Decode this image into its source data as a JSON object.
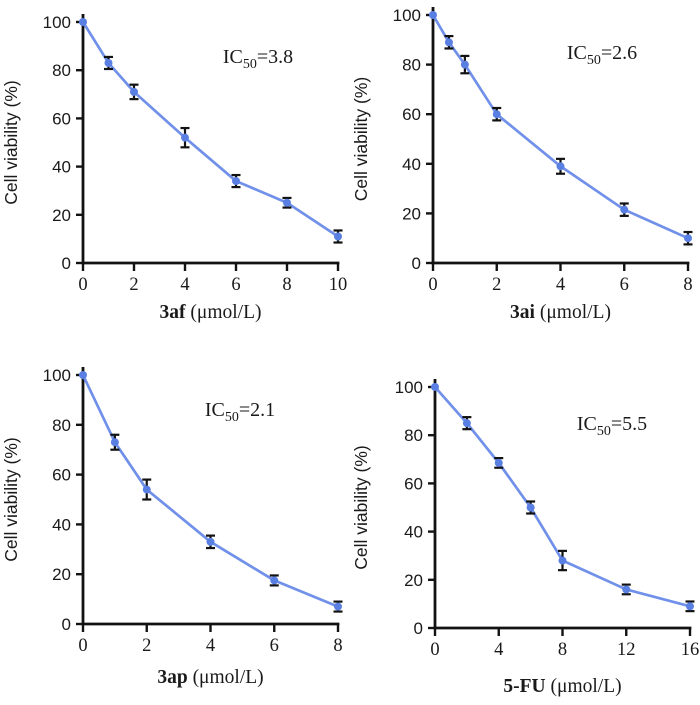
{
  "figure": {
    "background": "#ffffff",
    "axis_color": "#121212",
    "error_bar_color": "#121212",
    "line_color": "#7090e9",
    "marker_color": "#5a7fe3",
    "text_color": "#1a1a1a",
    "ylabel": "Cell viability (%)",
    "ylim": [
      0,
      100
    ],
    "yticks": [
      0,
      20,
      40,
      60,
      80,
      100
    ],
    "grid": "off",
    "legend": "none"
  },
  "chart_data": [
    {
      "type": "line",
      "id": "3af",
      "title": "",
      "xlabel_compound": "3af",
      "xlabel_unit": "(μmol/L)",
      "ylabel": "Cell viability (%)",
      "annotation": {
        "prefix": "IC",
        "subscript": "50",
        "value": "=3.8"
      },
      "x": [
        0,
        1,
        2,
        4,
        6,
        8,
        10
      ],
      "y": [
        100,
        83,
        71,
        52,
        34,
        25,
        11
      ],
      "yerr": [
        0,
        2.5,
        3,
        4,
        2.5,
        2,
        2.5
      ],
      "xlim": [
        0,
        10
      ],
      "xticks": [
        0,
        2,
        4,
        6,
        8,
        10
      ],
      "ylim": [
        0,
        100
      ],
      "yticks": [
        0,
        20,
        40,
        60,
        80,
        100
      ]
    },
    {
      "type": "line",
      "id": "3ai",
      "title": "",
      "xlabel_compound": "3ai",
      "xlabel_unit": "(μmol/L)",
      "ylabel": "Cell viability (%)",
      "annotation": {
        "prefix": "IC",
        "subscript": "50",
        "value": "=2.6"
      },
      "x": [
        0,
        0.5,
        1,
        2,
        4,
        6,
        8
      ],
      "y": [
        100,
        89,
        80,
        60,
        39,
        21.5,
        10
      ],
      "yerr": [
        0,
        2.5,
        3.5,
        2.5,
        3,
        2.5,
        2.5
      ],
      "xlim": [
        0,
        8
      ],
      "xticks": [
        0,
        2,
        4,
        6,
        8
      ],
      "ylim": [
        0,
        100
      ],
      "yticks": [
        0,
        20,
        40,
        60,
        80,
        100
      ]
    },
    {
      "type": "line",
      "id": "3ap",
      "title": "",
      "xlabel_compound": "3ap",
      "xlabel_unit": "(μmol/L)",
      "ylabel": "Cell viability (%)",
      "annotation": {
        "prefix": "IC",
        "subscript": "50",
        "value": "=2.1"
      },
      "x": [
        0,
        1,
        2,
        4,
        6,
        8
      ],
      "y": [
        100,
        73,
        54,
        33,
        17.5,
        7
      ],
      "yerr": [
        0,
        3,
        4,
        2.5,
        2,
        2
      ],
      "xlim": [
        0,
        8
      ],
      "xticks": [
        0,
        2,
        4,
        6,
        8
      ],
      "ylim": [
        0,
        100
      ],
      "yticks": [
        0,
        20,
        40,
        60,
        80,
        100
      ]
    },
    {
      "type": "line",
      "id": "5-FU",
      "title": "",
      "xlabel_compound": "5-FU",
      "xlabel_unit": "(μmol/L)",
      "ylabel": "Cell viability (%)",
      "annotation": {
        "prefix": "IC",
        "subscript": "50",
        "value": "=5.5"
      },
      "x": [
        0,
        2,
        4,
        6,
        8,
        12,
        16
      ],
      "y": [
        100,
        85,
        68.5,
        50,
        28,
        16,
        9
      ],
      "yerr": [
        0,
        2.5,
        2,
        2.5,
        4,
        2,
        2
      ],
      "xlim": [
        0,
        16
      ],
      "xticks": [
        0,
        4,
        8,
        12,
        16
      ],
      "ylim": [
        0,
        100
      ],
      "yticks": [
        0,
        20,
        40,
        60,
        80,
        100
      ]
    }
  ]
}
